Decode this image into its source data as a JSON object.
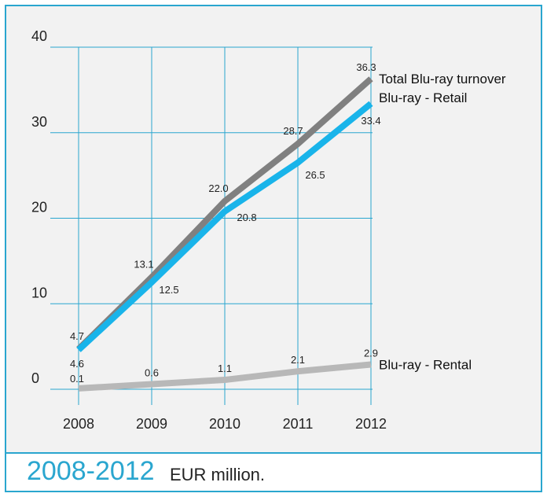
{
  "chart_data": {
    "type": "line",
    "x": [
      "2008",
      "2009",
      "2010",
      "2011",
      "2012"
    ],
    "ylim": [
      0,
      40
    ],
    "yticks": [
      "0",
      "10",
      "20",
      "30",
      "40"
    ],
    "grid": true,
    "series": [
      {
        "name": "Total Blu-ray turnover",
        "color": "#808080",
        "values": [
          4.7,
          13.1,
          22.0,
          28.7,
          36.3
        ],
        "labels": [
          "4.7",
          "13.1",
          "22.0",
          "28.7",
          "36.3"
        ]
      },
      {
        "name": "Blu-ray - Retail",
        "color": "#19b4ea",
        "values": [
          4.6,
          12.5,
          20.8,
          26.5,
          33.4
        ],
        "labels": [
          "4.6",
          "12.5",
          "20.8",
          "26.5",
          "33.4"
        ]
      },
      {
        "name": "Blu-ray - Rental",
        "color": "#b8b8b8",
        "values": [
          0.1,
          0.6,
          1.1,
          2.1,
          2.9
        ],
        "labels": [
          "0.1",
          "0.6",
          "1.1",
          "2.1",
          "2.9"
        ]
      }
    ]
  },
  "footer": {
    "year_range": "2008-2012",
    "unit": "EUR million."
  }
}
